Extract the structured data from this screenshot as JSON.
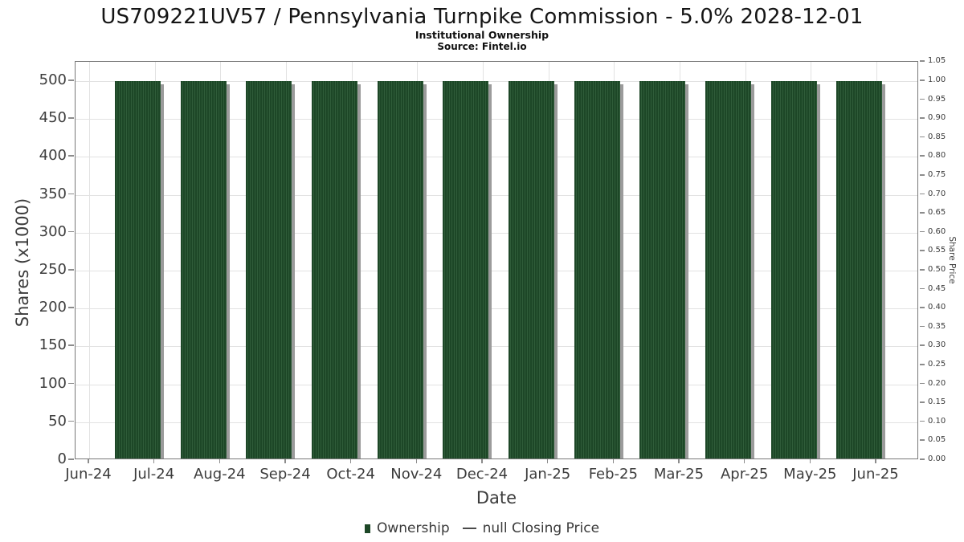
{
  "header": {
    "title": "US709221UV57 / Pennsylvania Turnpike Commission - 5.0% 2028-12-01",
    "subtitle": "Institutional Ownership",
    "source": "Source: Fintel.io"
  },
  "chart_data": {
    "type": "bar",
    "title": "US709221UV57 / Pennsylvania Turnpike Commission - 5.0% 2028-12-01",
    "subtitle": "Institutional Ownership",
    "source": "Source: Fintel.io",
    "xlabel": "Date",
    "ylabel_left": "Shares (x1000)",
    "ylabel_right": "Share Price",
    "x_tick_labels": [
      "Jun-24",
      "Jul-24",
      "Aug-24",
      "Sep-24",
      "Oct-24",
      "Nov-24",
      "Dec-24",
      "Jan-25",
      "Feb-25",
      "Mar-25",
      "Apr-25",
      "May-25",
      "Jun-25"
    ],
    "left_axis_ticks": [
      0,
      50,
      100,
      150,
      200,
      250,
      300,
      350,
      400,
      450,
      500
    ],
    "right_axis_ticks": [
      "0.00",
      "0.05",
      "0.10",
      "0.15",
      "0.20",
      "0.25",
      "0.30",
      "0.35",
      "0.40",
      "0.45",
      "0.50",
      "0.55",
      "0.60",
      "0.65",
      "0.70",
      "0.75",
      "0.80",
      "0.85",
      "0.90",
      "0.95",
      "1.00",
      "1.05"
    ],
    "ylim_left": [
      0,
      525
    ],
    "ylim_right": [
      0,
      1.05
    ],
    "grid": true,
    "legend_position": "bottom-center",
    "series": [
      {
        "name": "Ownership",
        "style": "striped-daily-bars",
        "categories": [
          "Jul-24",
          "Aug-24",
          "Sep-24",
          "Oct-24",
          "Nov-24",
          "Dec-24",
          "Jan-25",
          "Feb-25",
          "Mar-25",
          "Apr-25",
          "May-25",
          "Jun-25"
        ],
        "values": [
          500,
          500,
          500,
          500,
          500,
          500,
          500,
          500,
          500,
          500,
          500,
          500
        ],
        "unit": "thousand shares"
      },
      {
        "name": "null Closing Price",
        "style": "line",
        "values": []
      }
    ],
    "legend": [
      {
        "label": "Ownership",
        "marker": "square",
        "color": "#1d4727"
      },
      {
        "label": "null Closing Price",
        "marker": "line",
        "color": "#4a4a4a"
      }
    ]
  },
  "colors": {
    "bar_green_dark": "#1d4727",
    "bar_green_stripe": "#2f5c39",
    "bar_shadow_gray": "#9b9b9b",
    "gridline": "#e2e2e2",
    "axis_frame": "#787878",
    "tick_text": "#3c3c3c",
    "title_text": "#151515"
  }
}
